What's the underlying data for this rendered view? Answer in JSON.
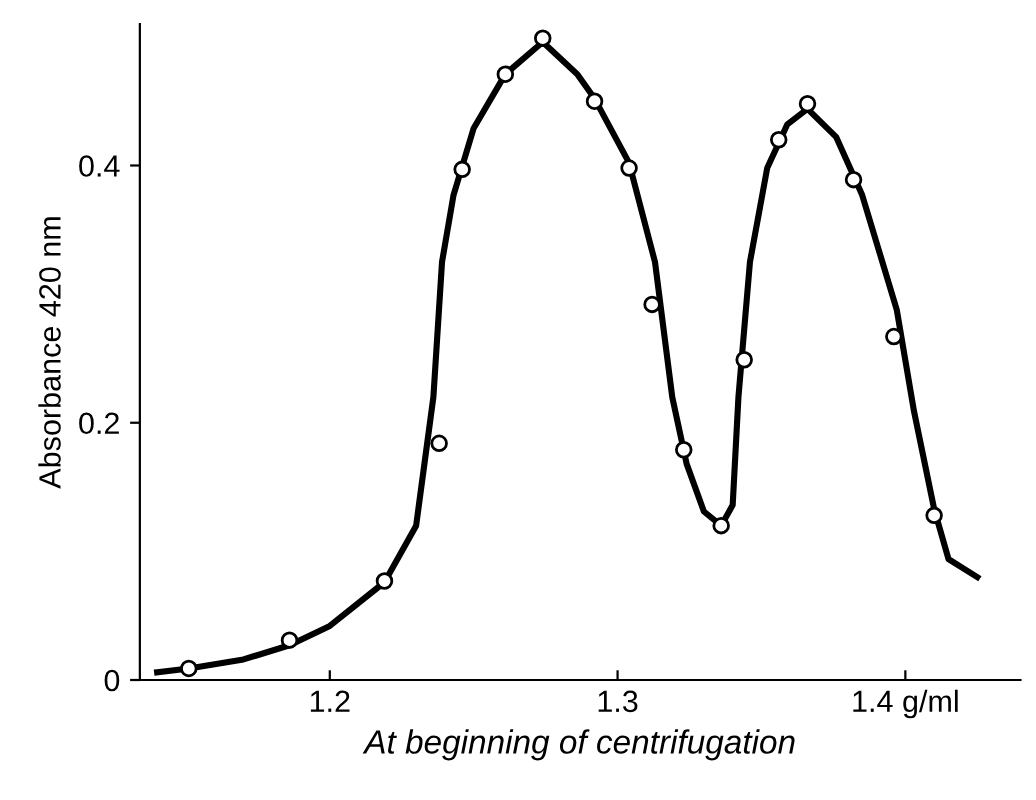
{
  "chart_data": {
    "type": "line",
    "xlabel": "At beginning of centrifugation",
    "ylabel": "Absorbance 420 nm",
    "xlim": [
      1.134,
      1.44
    ],
    "ylim": [
      0,
      0.51
    ],
    "xticks": [
      1.2,
      1.3,
      {
        "value": 1.4,
        "label": "1.4 g/ml"
      }
    ],
    "yticks": [
      0,
      0.2,
      0.4
    ],
    "marker": "circle",
    "grid": false,
    "legend": false,
    "series": [
      {
        "marker": "none",
        "color": "#000000",
        "x": [
          1.14,
          1.151,
          1.17,
          1.186,
          1.2,
          1.219,
          1.23,
          1.236,
          1.239,
          1.243,
          1.25,
          1.261,
          1.274,
          1.286,
          1.292,
          1.304,
          1.313,
          1.319,
          1.324,
          1.33,
          1.336,
          1.34,
          1.342,
          1.346,
          1.352,
          1.359,
          1.366,
          1.376,
          1.385,
          1.397,
          1.403,
          1.41,
          1.415,
          1.425
        ],
        "values": [
          0.006,
          0.009,
          0.016,
          0.027,
          0.042,
          0.076,
          0.12,
          0.22,
          0.325,
          0.377,
          0.429,
          0.471,
          0.496,
          0.471,
          0.452,
          0.402,
          0.325,
          0.22,
          0.168,
          0.131,
          0.12,
          0.136,
          0.22,
          0.325,
          0.398,
          0.432,
          0.444,
          0.422,
          0.377,
          0.288,
          0.209,
          0.133,
          0.094,
          0.08
        ]
      },
      {
        "type": "scatter",
        "color": "#000000",
        "x": [
          1.151,
          1.186,
          1.219,
          1.238,
          1.246,
          1.261,
          1.274,
          1.292,
          1.304,
          1.312,
          1.323,
          1.336,
          1.344,
          1.356,
          1.366,
          1.382,
          1.396,
          1.41
        ],
        "values": [
          0.009,
          0.031,
          0.077,
          0.184,
          0.397,
          0.471,
          0.499,
          0.45,
          0.398,
          0.292,
          0.179,
          0.12,
          0.249,
          0.42,
          0.448,
          0.389,
          0.267,
          0.128
        ]
      }
    ]
  }
}
